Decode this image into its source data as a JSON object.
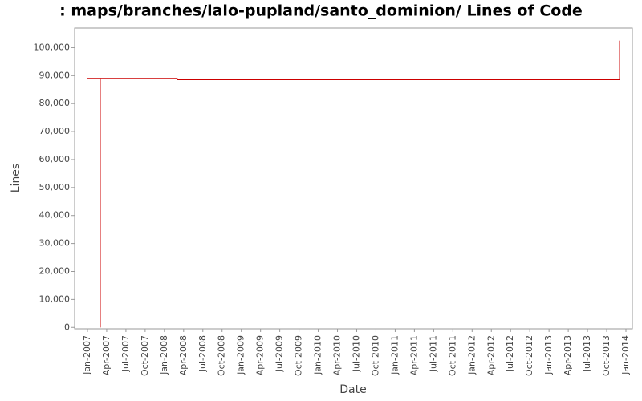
{
  "chart_data": {
    "type": "line",
    "step": true,
    "title": ": maps/branches/lalo-pupland/santo_dominion/ Lines of Code",
    "x_label": "Date",
    "y_label": "Lines",
    "x": [
      "2007-01",
      "2007-03",
      "2007-03",
      "2008-03",
      "2013-12",
      "2013-12"
    ],
    "series": [
      {
        "name": "Lines",
        "color": "#cc0000",
        "values": [
          89000,
          0,
          89000,
          88500,
          88500,
          102500
        ]
      }
    ],
    "xlim": [
      "2006-11",
      "2014-02"
    ],
    "xticks": [
      {
        "value": "2007-01",
        "label": "Jan-2007"
      },
      {
        "value": "2007-04",
        "label": "Apr-2007"
      },
      {
        "value": "2007-07",
        "label": "Jul-2007"
      },
      {
        "value": "2007-10",
        "label": "Oct-2007"
      },
      {
        "value": "2008-01",
        "label": "Jan-2008"
      },
      {
        "value": "2008-04",
        "label": "Apr-2008"
      },
      {
        "value": "2008-07",
        "label": "Jul-2008"
      },
      {
        "value": "2008-10",
        "label": "Oct-2008"
      },
      {
        "value": "2009-01",
        "label": "Jan-2009"
      },
      {
        "value": "2009-04",
        "label": "Apr-2009"
      },
      {
        "value": "2009-07",
        "label": "Jul-2009"
      },
      {
        "value": "2009-10",
        "label": "Oct-2009"
      },
      {
        "value": "2010-01",
        "label": "Jan-2010"
      },
      {
        "value": "2010-04",
        "label": "Apr-2010"
      },
      {
        "value": "2010-07",
        "label": "Jul-2010"
      },
      {
        "value": "2010-10",
        "label": "Oct-2010"
      },
      {
        "value": "2011-01",
        "label": "Jan-2011"
      },
      {
        "value": "2011-04",
        "label": "Apr-2011"
      },
      {
        "value": "2011-07",
        "label": "Jul-2011"
      },
      {
        "value": "2011-10",
        "label": "Oct-2011"
      },
      {
        "value": "2012-01",
        "label": "Jan-2012"
      },
      {
        "value": "2012-04",
        "label": "Apr-2012"
      },
      {
        "value": "2012-07",
        "label": "Jul-2012"
      },
      {
        "value": "2012-10",
        "label": "Oct-2012"
      },
      {
        "value": "2013-01",
        "label": "Jan-2013"
      },
      {
        "value": "2013-04",
        "label": "Apr-2013"
      },
      {
        "value": "2013-07",
        "label": "Jul-2013"
      },
      {
        "value": "2013-10",
        "label": "Oct-2013"
      },
      {
        "value": "2014-01",
        "label": "Jan-2014"
      }
    ],
    "ylim": [
      -500,
      107000
    ],
    "yticks": [
      0,
      {
        "value": 10000,
        "label": "10,000"
      },
      {
        "value": 20000,
        "label": "20,000"
      },
      {
        "value": 30000,
        "label": "30,000"
      },
      {
        "value": 40000,
        "label": "40,000"
      },
      {
        "value": 50000,
        "label": "50,000"
      },
      {
        "value": 60000,
        "label": "60,000"
      },
      {
        "value": 70000,
        "label": "70,000"
      },
      {
        "value": 80000,
        "label": "80,000"
      },
      {
        "value": 90000,
        "label": "90,000"
      },
      {
        "value": 100000,
        "label": "100,000"
      }
    ],
    "grid": false
  }
}
